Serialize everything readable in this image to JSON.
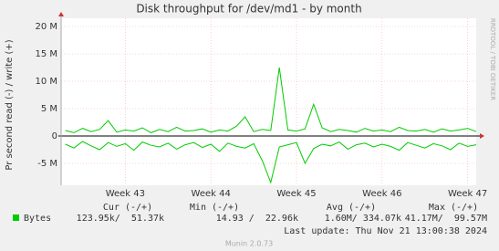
{
  "chart_data": {
    "type": "line",
    "title": "Disk throughput for /dev/md1 - by month",
    "y_label": "Pr second read (-) / write (+)",
    "side_text": "RRDTOOL / TOBI OETIKER",
    "x": [
      42.3,
      42.4,
      42.5,
      42.6,
      42.7,
      42.8,
      42.9,
      43.0,
      43.1,
      43.2,
      43.3,
      43.4,
      43.5,
      43.6,
      43.7,
      43.8,
      43.9,
      44.0,
      44.1,
      44.2,
      44.3,
      44.4,
      44.5,
      44.6,
      44.7,
      44.8,
      44.9,
      45.0,
      45.1,
      45.2,
      45.3,
      45.4,
      45.5,
      45.6,
      45.7,
      45.8,
      45.9,
      46.0,
      46.1,
      46.2,
      46.3,
      46.4,
      46.5,
      46.6,
      46.7,
      46.8,
      46.9,
      47.0,
      47.1
    ],
    "series": [
      {
        "color": "#00cc00",
        "values": [
          1.0,
          0.6,
          1.4,
          0.8,
          1.2,
          2.8,
          0.7,
          1.1,
          0.9,
          1.5,
          0.6,
          1.2,
          0.8,
          1.6,
          0.9,
          1.0,
          1.3,
          0.7,
          1.1,
          0.9,
          1.8,
          3.5,
          0.8,
          1.2,
          1.0,
          12.5,
          1.1,
          0.9,
          1.3,
          5.8,
          1.5,
          0.8,
          1.2,
          1.0,
          0.7,
          1.4,
          0.9,
          1.1,
          0.8,
          1.6,
          1.0,
          0.9,
          1.2,
          0.7,
          1.3,
          0.9,
          1.1,
          1.4,
          0.8
        ]
      },
      {
        "color": "#00cc00",
        "values": [
          -1.5,
          -2.2,
          -1.0,
          -1.8,
          -2.5,
          -1.2,
          -1.9,
          -1.4,
          -2.6,
          -1.1,
          -1.7,
          -2.0,
          -1.3,
          -2.4,
          -1.6,
          -1.2,
          -2.1,
          -1.5,
          -2.8,
          -1.3,
          -1.9,
          -2.2,
          -1.4,
          -4.5,
          -8.5,
          -2.0,
          -1.6,
          -1.2,
          -5.0,
          -2.3,
          -1.5,
          -1.8,
          -1.1,
          -2.4,
          -1.6,
          -1.3,
          -2.0,
          -1.5,
          -1.9,
          -2.6,
          -1.2,
          -1.7,
          -2.2,
          -1.4,
          -1.8,
          -2.5,
          -1.3,
          -1.9,
          -1.6
        ]
      }
    ],
    "xlim": [
      42.25,
      47.1
    ],
    "xticks": [
      {
        "value": 43,
        "label": "Week 43"
      },
      {
        "value": 44,
        "label": "Week 44"
      },
      {
        "value": 45,
        "label": "Week 45"
      },
      {
        "value": 46,
        "label": "Week 46"
      },
      {
        "value": 47,
        "label": "Week 47"
      }
    ],
    "ylim": [
      -9,
      21.5
    ],
    "yticks": [
      {
        "value": -5,
        "label": "-5 M"
      },
      0,
      {
        "value": 5,
        "label": "5 M"
      },
      {
        "value": 10,
        "label": "10 M"
      },
      {
        "value": 15,
        "label": "15 M"
      },
      {
        "value": 20,
        "label": "20 M"
      }
    ],
    "grid": true,
    "legend": {
      "label": "Bytes",
      "color": "#00cc00",
      "columns": [
        "Cur (-/+)",
        "Min (-/+)",
        "Avg (-/+)",
        "Max (-/+)"
      ],
      "values": [
        "123.95k/  51.37k",
        "14.93 /  22.96k",
        "1.60M/ 334.07k",
        "41.17M/  99.57M"
      ]
    },
    "last_update": "Last update: Thu Nov 21 13:00:38 2024",
    "footer": "Munin 2.0.73"
  }
}
